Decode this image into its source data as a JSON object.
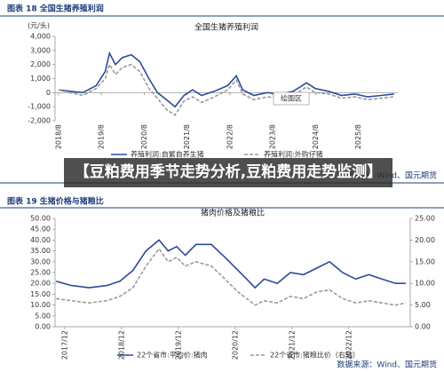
{
  "captions": [
    "图表 18  全国生猪养殖利润",
    "图表 19  生猪价格与猪粮比"
  ],
  "sources": [
    "数据来源：Wind、国元期货",
    "数据来源：Wind、国元期货"
  ],
  "banner": "【豆粕费用季节走势分析,豆粕费用走势监测】",
  "tooltip": "绘图区",
  "chart_data": [
    {
      "type": "line",
      "title": "全国生猪养殖利润",
      "y_label": "(元/头)",
      "grid": false,
      "x": [
        2018.58,
        2018.85,
        2019.15,
        2019.46,
        2019.67,
        2019.77,
        2019.91,
        2020.07,
        2020.28,
        2020.48,
        2020.69,
        2020.89,
        2021.1,
        2021.3,
        2021.51,
        2021.71,
        2021.92,
        2022.22,
        2022.53,
        2022.73,
        2022.88,
        2023.14,
        2023.45,
        2023.76,
        2024.06,
        2024.37,
        2024.57,
        2024.88,
        2025.19,
        2025.49,
        2025.8,
        2026.11,
        2026.41
      ],
      "xlim": [
        2018.5,
        2026.5
      ],
      "xticks": [
        {
          "value": 2018.58,
          "label": "2018/8"
        },
        {
          "value": 2019.58,
          "label": "2019/8"
        },
        {
          "value": 2020.58,
          "label": "2020/8"
        },
        {
          "value": 2021.58,
          "label": "2021/8"
        },
        {
          "value": 2022.58,
          "label": "2022/8"
        },
        {
          "value": 2023.58,
          "label": "2023/8"
        },
        {
          "value": 2024.58,
          "label": "2024/8"
        },
        {
          "value": 2025.58,
          "label": "2025/8"
        }
      ],
      "ylim": [
        -2000,
        4000
      ],
      "yticks": [
        {
          "value": -2000,
          "label": "-2,000"
        },
        {
          "value": -1000,
          "label": "-1,000"
        },
        0,
        {
          "value": 1000,
          "label": "1,000"
        },
        {
          "value": 2000,
          "label": "2,000"
        },
        {
          "value": 3000,
          "label": "3,000"
        },
        {
          "value": 4000,
          "label": "4,000"
        }
      ],
      "series": [
        {
          "name": "养殖利润:自繁自养生猪",
          "color": "#2b4a9a",
          "dashed": false,
          "values": [
            200,
            100,
            0,
            500,
            1500,
            2800,
            2000,
            2500,
            2700,
            2200,
            1000,
            0,
            -500,
            -1000,
            -200,
            200,
            -200,
            100,
            500,
            1200,
            200,
            -200,
            0,
            -100,
            100,
            700,
            300,
            100,
            -200,
            -100,
            -300,
            -200,
            -100
          ]
        },
        {
          "name": "养殖利润:外购仔猪",
          "color": "#9a9a9a",
          "dashed": true,
          "values": [
            200,
            0,
            -200,
            300,
            1000,
            2000,
            1300,
            1800,
            2000,
            1500,
            300,
            -400,
            -1200,
            -1600,
            -600,
            -300,
            -700,
            -300,
            200,
            900,
            -100,
            -500,
            -300,
            -400,
            -200,
            400,
            0,
            -100,
            -400,
            -300,
            -500,
            -400,
            -300
          ]
        }
      ]
    },
    {
      "type": "line",
      "title": "猪肉价格及猪粮比",
      "grid": false,
      "x": [
        2017.77,
        2018.04,
        2018.35,
        2018.66,
        2018.89,
        2019.12,
        2019.35,
        2019.58,
        2019.74,
        2019.89,
        2020.04,
        2020.23,
        2020.5,
        2020.74,
        2020.97,
        2021.12,
        2021.27,
        2021.43,
        2021.66,
        2021.89,
        2022.12,
        2022.35,
        2022.58,
        2022.81,
        2023.04,
        2023.27,
        2023.5,
        2023.74,
        2023.92
      ],
      "xlim": [
        2017.75,
        2024.0
      ],
      "xticks": [
        {
          "value": 2017.92,
          "label": "2017/12"
        },
        {
          "value": 2018.92,
          "label": "2018/12"
        },
        {
          "value": 2019.92,
          "label": "2019/12"
        },
        {
          "value": 2020.92,
          "label": "2020/12"
        },
        {
          "value": 2021.92,
          "label": "2021/12"
        },
        {
          "value": 2022.92,
          "label": "2022/12"
        }
      ],
      "ylim": [
        0,
        50
      ],
      "yticks": [
        {
          "value": 0,
          "label": "0.00"
        },
        {
          "value": 5,
          "label": "5.00"
        },
        {
          "value": 10,
          "label": "10.00"
        },
        {
          "value": 15,
          "label": "15.00"
        },
        {
          "value": 20,
          "label": "20.00"
        },
        {
          "value": 25,
          "label": "25.00"
        },
        {
          "value": 30,
          "label": "30.00"
        },
        {
          "value": 35,
          "label": "35.00"
        },
        {
          "value": 40,
          "label": "40.00"
        },
        {
          "value": 45,
          "label": "45.00"
        },
        {
          "value": 50,
          "label": "50.00"
        }
      ],
      "y2lim": [
        0,
        25
      ],
      "y2ticks": [
        {
          "value": 0,
          "label": "0.00"
        },
        {
          "value": 5,
          "label": "5.00"
        },
        {
          "value": 10,
          "label": "10.00"
        },
        {
          "value": 15,
          "label": "15.00"
        },
        {
          "value": 20,
          "label": "20.00"
        },
        {
          "value": 25,
          "label": "25.00"
        }
      ],
      "series": [
        {
          "name": "22个省市:平均价:猪肉",
          "color": "#2b4a9a",
          "dashed": false,
          "values": [
            21,
            19,
            18,
            19,
            21,
            26,
            35,
            40,
            35,
            37,
            33,
            38,
            38,
            32,
            26,
            22,
            18,
            22,
            20,
            25,
            24,
            27,
            30,
            25,
            22,
            24,
            22,
            20,
            20
          ]
        },
        {
          "name": "22个省市:猪粮比价（右轴）",
          "color": "#9a9a9a",
          "dashed": true,
          "axis": "y2",
          "values": [
            6.5,
            6,
            5.5,
            6,
            7,
            9,
            14,
            18,
            15,
            16,
            14,
            15,
            14,
            11,
            8,
            6.5,
            5,
            6,
            5.5,
            7,
            6.5,
            8,
            8.5,
            6.5,
            5.5,
            6,
            5.5,
            5,
            5.5
          ]
        }
      ]
    }
  ]
}
